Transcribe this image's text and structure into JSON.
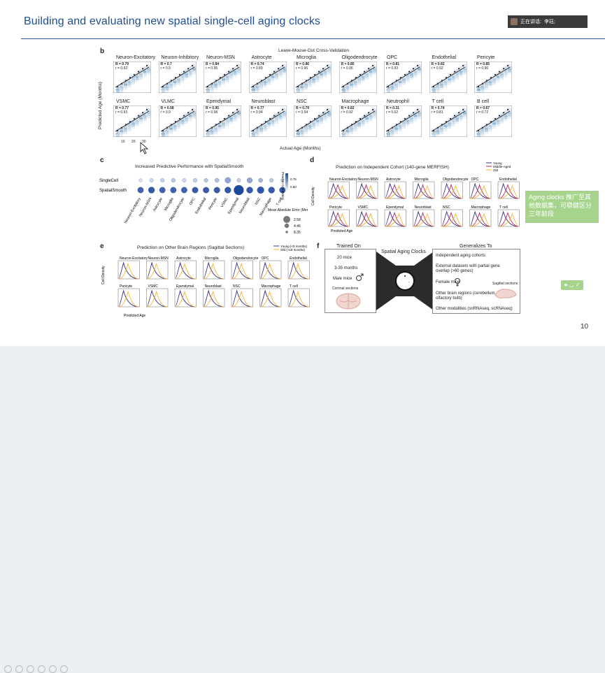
{
  "slide": {
    "title": "Building and evaluating new spatial single-cell aging clocks",
    "page_number": "10"
  },
  "presenter": {
    "label": "正在讲话:",
    "name": "李珏;"
  },
  "callout": {
    "text": "Aging clocks 推广至其他数据集，可稳健区分三年龄段"
  },
  "panel_b": {
    "letter": "b",
    "title": "Leave-Mouse-Out Cross-Validation",
    "ylabel": "Predicted Age (Months)",
    "xlabel": "Actual Age (Months)",
    "xticks": [
      "10",
      "20",
      "30"
    ],
    "tiles": [
      {
        "name": "Neuron-Excitatory",
        "R": "R = 0.79",
        "r": "r = 0.92"
      },
      {
        "name": "Neuron-Inhibitory",
        "R": "R = 0.7",
        "r": "r = 0.9"
      },
      {
        "name": "Neuron-MSN",
        "R": "R = 0.84",
        "r": "r = 0.95"
      },
      {
        "name": "Astrocyte",
        "R": "R = 0.74",
        "r": "r = 0.89"
      },
      {
        "name": "Microglia",
        "R": "R = 0.86",
        "r": "r = 0.96"
      },
      {
        "name": "Oligodendrocyte",
        "R": "R = 0.85",
        "r": "r = 0.95"
      },
      {
        "name": "OPC",
        "R": "R = 0.81",
        "r": "r = 0.93"
      },
      {
        "name": "Endothelial",
        "R": "R = 0.82",
        "r": "r = 0.92"
      },
      {
        "name": "Pericyte",
        "R": "R = 0.85",
        "r": "r = 0.96"
      },
      {
        "name": "VSMC",
        "R": "R = 0.77",
        "r": "r = 0.93"
      },
      {
        "name": "VLMC",
        "R": "R = 0.58",
        "r": "r = 0.9"
      },
      {
        "name": "Ependymal",
        "R": "R = 0.95",
        "r": "r = 0.98"
      },
      {
        "name": "Neuroblast",
        "R": "R = 0.77",
        "r": "r = 0.94"
      },
      {
        "name": "NSC",
        "R": "R = 0.79",
        "r": "r = 0.94"
      },
      {
        "name": "Macrophage",
        "R": "R = 0.82",
        "r": "r = 0.92"
      },
      {
        "name": "Neutrophil",
        "R": "R = 0.31",
        "r": "r = 0.62"
      },
      {
        "name": "T cell",
        "R": "R = 0.74",
        "r": "r = 0.81"
      },
      {
        "name": "B cell",
        "R": "R = 0.67",
        "r": "r = 0.72"
      }
    ]
  },
  "panel_c": {
    "letter": "c",
    "title": "Increased Predictive Performance with SpatialSmooth",
    "rows": [
      "SingleCell",
      "SpatialSmooth"
    ],
    "columns": [
      "Neuron-Excitatory",
      "Neuron-MSN",
      "Astrocyte",
      "Microglia",
      "Oligodendrocyte",
      "OPC",
      "Endothelial",
      "Pericyte",
      "VSMC",
      "Ependymal",
      "Neuroblast",
      "NSC",
      "Macrophage",
      "T cell"
    ],
    "colorbar_label": "Pearson Correlation",
    "colorbar_ticks": [
      "0.75",
      "0.50"
    ],
    "size_legend_title": "Mean Absolute Error (Months)",
    "size_legend": [
      "2.58",
      "4.46",
      "8.35"
    ],
    "singlecell": [
      {
        "size": 0.35,
        "shade": 0.1
      },
      {
        "size": 0.38,
        "shade": 0.15
      },
      {
        "size": 0.4,
        "shade": 0.2
      },
      {
        "size": 0.42,
        "shade": 0.25
      },
      {
        "size": 0.38,
        "shade": 0.15
      },
      {
        "size": 0.4,
        "shade": 0.2
      },
      {
        "size": 0.42,
        "shade": 0.25
      },
      {
        "size": 0.45,
        "shade": 0.3
      },
      {
        "size": 0.6,
        "shade": 0.45
      },
      {
        "size": 0.38,
        "shade": 0.2
      },
      {
        "size": 0.55,
        "shade": 0.45
      },
      {
        "size": 0.45,
        "shade": 0.35
      },
      {
        "size": 0.4,
        "shade": 0.25
      },
      {
        "size": 0.35,
        "shade": 0.15
      }
    ],
    "spatialsmooth": [
      {
        "size": 0.6,
        "shade": 0.85
      },
      {
        "size": 0.65,
        "shade": 0.9
      },
      {
        "size": 0.6,
        "shade": 0.85
      },
      {
        "size": 0.6,
        "shade": 0.85
      },
      {
        "size": 0.6,
        "shade": 0.85
      },
      {
        "size": 0.62,
        "shade": 0.88
      },
      {
        "size": 0.62,
        "shade": 0.88
      },
      {
        "size": 0.62,
        "shade": 0.88
      },
      {
        "size": 0.65,
        "shade": 0.9
      },
      {
        "size": 1.0,
        "shade": 1.0
      },
      {
        "size": 0.65,
        "shade": 0.9
      },
      {
        "size": 0.7,
        "shade": 0.92
      },
      {
        "size": 0.65,
        "shade": 0.9
      },
      {
        "size": 0.62,
        "shade": 0.88
      }
    ]
  },
  "panel_d": {
    "letter": "d",
    "title": "Prediction on Independent Cohort (140-gene MERFISH)",
    "ylabel": "Cell Density",
    "xlabel": "Predicted Age",
    "legend": [
      {
        "label": "Young",
        "color": "#3b2c85"
      },
      {
        "label": "Middle-Aged",
        "color": "#b3245a"
      },
      {
        "label": "Old",
        "color": "#f0b72f"
      }
    ],
    "row1": [
      "Neuron-Excitatory",
      "Neuron-MSN",
      "Astrocyte",
      "Microglia",
      "Oligodendrocyte",
      "OPC",
      "Endothelial"
    ],
    "row2": [
      "Pericyte",
      "VSMC",
      "Ependymal",
      "Neuroblast",
      "NSC",
      "Macrophage",
      "T cell"
    ]
  },
  "panel_e": {
    "letter": "e",
    "title": "Prediction on Other Brain Regions (Sagittal Sections)",
    "ylabel": "Cell Density",
    "xlabel": "Predicted Age",
    "legend": [
      {
        "label": "Young (<9 months)",
        "color": "#3b2c85"
      },
      {
        "label": "Old (>18 months)",
        "color": "#f0b72f"
      }
    ],
    "row1": [
      "Neuron-Excitatory",
      "Neuron-MSN",
      "Astrocyte",
      "Microglia",
      "Oligodendrocyte",
      "OPC",
      "Endothelial"
    ],
    "row2": [
      "Pericyte",
      "VSMC",
      "Ependymal",
      "Neuroblast",
      "NSC",
      "Macrophage",
      "T cell"
    ]
  },
  "panel_f": {
    "letter": "f",
    "trained_on": "Trained On",
    "center_title": "Spatial Aging Clocks",
    "generalizes_to": "Generalizes To",
    "train_items": [
      "20 mice",
      "3-35 months",
      "Male mice",
      "Coronal sections"
    ],
    "gen_items": [
      "Independent aging cohorts",
      "External datasets with partial gene overlap (>60 genes)",
      "Female mice",
      "Other brain regions (cerebellum, olfactory bulb)",
      "Other modalities (snRNAseq, scRNAseq)"
    ],
    "sagittal_label": "Sagittal sections"
  }
}
